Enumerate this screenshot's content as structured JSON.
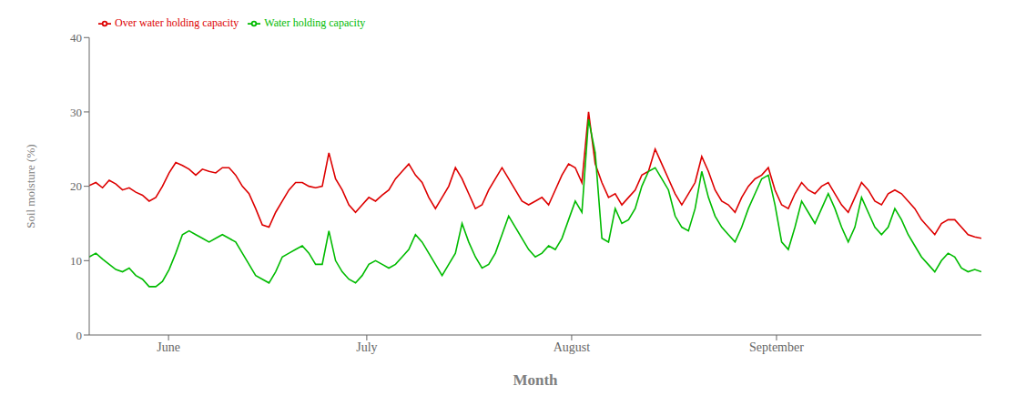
{
  "chart_data": {
    "type": "line",
    "title": "",
    "xlabel": "Month",
    "ylabel": "Soil moisture (%)",
    "xlim": [
      0,
      135
    ],
    "xticks": [
      {
        "value": 12,
        "label": "June"
      },
      {
        "value": 42,
        "label": "July"
      },
      {
        "value": 73,
        "label": "August"
      },
      {
        "value": 104,
        "label": "September"
      }
    ],
    "ylim": [
      0,
      40
    ],
    "yticks": [
      0,
      10,
      20,
      30,
      40
    ],
    "grid": false,
    "legend": "upper left",
    "x": [
      0,
      1.0075,
      2.0149,
      3.0224,
      4.0299,
      5.0373,
      6.0448,
      7.0522,
      8.0597,
      9.0672,
      10.0746,
      11.0821,
      12.0896,
      13.097,
      14.1045,
      15.1119,
      16.1194,
      17.1269,
      18.1343,
      19.1418,
      20.1493,
      21.1567,
      22.1642,
      23.1716,
      24.1791,
      25.1866,
      26.194,
      27.2015,
      28.209,
      29.2164,
      30.2239,
      31.2313,
      32.2388,
      33.2463,
      34.2537,
      35.2612,
      36.2687,
      37.2761,
      38.2836,
      39.291,
      40.2985,
      41.306,
      42.3134,
      43.3209,
      44.3284,
      45.3358,
      46.3433,
      47.3507,
      48.3582,
      49.3657,
      50.3731,
      51.3806,
      52.3881,
      53.3955,
      54.403,
      55.4104,
      56.4179,
      57.4254,
      58.4328,
      59.4403,
      60.4478,
      61.4552,
      62.4627,
      63.4701,
      64.4776,
      65.4851,
      66.4925,
      67.5,
      68.5075,
      69.5149,
      70.5224,
      71.5299,
      72.5373,
      73.5448,
      74.5522,
      75.5597,
      76.5672,
      77.5746,
      78.5821,
      79.5896,
      80.597,
      81.6045,
      82.6119,
      83.6194,
      84.6269,
      85.6343,
      86.6418,
      87.6493,
      88.6567,
      89.6642,
      90.6716,
      91.6791,
      92.6866,
      93.694,
      94.7015,
      95.709,
      96.7164,
      97.7239,
      98.7313,
      99.7388,
      100.7463,
      101.7537,
      102.7612,
      103.7687,
      104.7761,
      105.7836,
      106.791,
      107.7985,
      108.806,
      109.8134,
      110.8209,
      111.8284,
      112.8358,
      113.8433,
      114.8507,
      115.8582,
      116.8657,
      117.8731,
      118.8806,
      119.8881,
      120.8955,
      121.903,
      122.9104,
      123.9179,
      124.9254,
      125.9328,
      126.9403,
      127.9478,
      128.9552,
      129.9627,
      130.9701,
      131.9776,
      132.9851,
      133.9925,
      135
    ],
    "series": [
      {
        "name": "Over water holding capacity",
        "color": "#dd0000",
        "values": [
          20.1,
          20.5,
          19.8,
          20.8,
          20.3,
          19.5,
          19.8,
          19.2,
          18.8,
          18.0,
          18.5,
          20.0,
          21.8,
          23.2,
          22.8,
          22.3,
          21.5,
          22.3,
          22.0,
          21.8,
          22.5,
          22.5,
          21.5,
          20.0,
          19.0,
          17.0,
          14.8,
          14.5,
          16.5,
          18.0,
          19.5,
          20.5,
          20.5,
          20.0,
          19.8,
          20.0,
          24.5,
          21.0,
          19.5,
          17.5,
          16.5,
          17.5,
          18.5,
          18.0,
          18.8,
          19.5,
          21.0,
          22.0,
          23.0,
          21.5,
          20.5,
          18.5,
          17.0,
          18.5,
          20.0,
          22.5,
          21.0,
          19.0,
          17.0,
          17.5,
          19.5,
          21.0,
          22.5,
          21.0,
          19.5,
          18.0,
          17.5,
          18.0,
          18.5,
          17.5,
          19.5,
          21.5,
          23.0,
          22.5,
          20.5,
          30.0,
          23.0,
          20.5,
          18.5,
          19.0,
          17.5,
          18.5,
          19.5,
          21.5,
          22.0,
          25.0,
          23.0,
          21.0,
          19.0,
          17.5,
          19.0,
          20.5,
          24.0,
          22.0,
          19.5,
          18.0,
          17.5,
          16.5,
          18.5,
          20.0,
          21.0,
          21.5,
          22.5,
          19.5,
          17.5,
          17.0,
          19.0,
          20.5,
          19.5,
          19.0,
          20.0,
          20.5,
          19.0,
          17.5,
          16.5,
          18.5,
          20.5,
          19.5,
          18.0,
          17.5,
          19.0,
          19.5,
          19.0,
          18.0,
          17.0,
          15.5,
          14.5,
          13.5,
          15.0,
          15.5,
          15.5,
          14.5,
          13.5,
          13.2,
          13.0
        ]
      },
      {
        "name": "Water holding capacity",
        "color": "#00bb00",
        "values": [
          10.5,
          11.0,
          10.2,
          9.5,
          8.8,
          8.5,
          9.0,
          8.0,
          7.5,
          6.5,
          6.5,
          7.2,
          8.8,
          11.0,
          13.5,
          14.0,
          13.5,
          13.0,
          12.5,
          13.0,
          13.5,
          13.0,
          12.5,
          11.0,
          9.5,
          8.0,
          7.5,
          7.0,
          8.5,
          10.5,
          11.0,
          11.5,
          12.0,
          11.0,
          9.5,
          9.5,
          14.0,
          10.0,
          8.5,
          7.5,
          7.0,
          8.0,
          9.5,
          10.0,
          9.5,
          9.0,
          9.5,
          10.5,
          11.5,
          13.5,
          12.5,
          11.0,
          9.5,
          8.0,
          9.5,
          11.0,
          15.0,
          12.5,
          10.5,
          9.0,
          9.5,
          11.0,
          13.5,
          16.0,
          14.5,
          13.0,
          11.5,
          10.5,
          11.0,
          12.0,
          11.5,
          13.0,
          15.5,
          18.0,
          16.5,
          29.0,
          24.5,
          13.0,
          12.5,
          17.0,
          15.0,
          15.5,
          17.0,
          20.0,
          22.0,
          22.5,
          21.0,
          19.5,
          16.0,
          14.5,
          14.0,
          17.0,
          22.0,
          18.5,
          16.0,
          14.5,
          13.5,
          12.5,
          14.5,
          17.0,
          19.0,
          21.0,
          21.5,
          17.5,
          12.5,
          11.5,
          14.5,
          18.0,
          16.5,
          15.0,
          17.0,
          19.0,
          17.0,
          14.5,
          12.5,
          14.5,
          18.5,
          16.5,
          14.5,
          13.5,
          14.5,
          17.0,
          15.5,
          13.5,
          12.0,
          10.5,
          9.5,
          8.5,
          10.0,
          11.0,
          10.5,
          9.0,
          8.5,
          8.8,
          8.5
        ]
      }
    ]
  }
}
